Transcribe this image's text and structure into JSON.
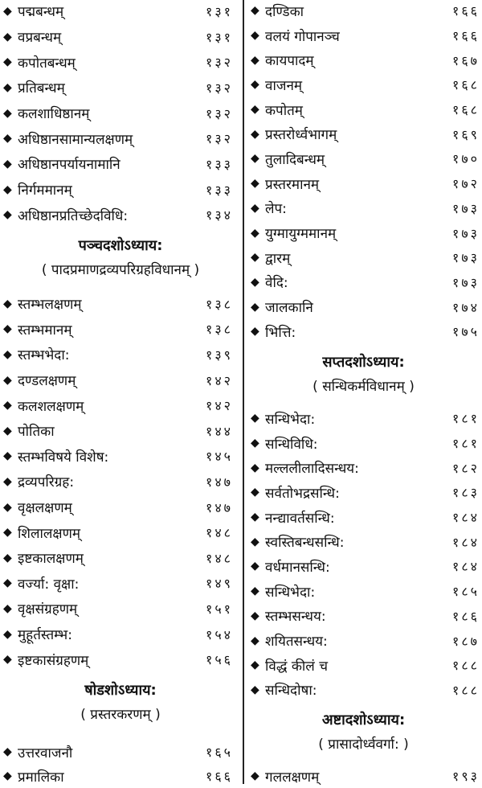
{
  "left": {
    "group1": [
      {
        "title": "पद्मबन्धम्",
        "page": "१३१"
      },
      {
        "title": "वप्रबन्धम्",
        "page": "१३१"
      },
      {
        "title": "कपोतबन्धम्",
        "page": "१३२"
      },
      {
        "title": "प्रतिबन्धम्",
        "page": "१३२"
      },
      {
        "title": "कलशाधिष्ठानम्",
        "page": "१३२"
      },
      {
        "title": "अधिष्ठानसामान्यलक्षणम्",
        "page": "१३२"
      },
      {
        "title": "अधिष्ठानपर्यायनामानि",
        "page": "१३३"
      },
      {
        "title": "निर्गममानम्",
        "page": "१३३"
      },
      {
        "title": "अधिष्ठानप्रतिच्छेदविधि:",
        "page": "१३४"
      }
    ],
    "chapter15": {
      "heading": "पञ्चदशोऽध्याय:",
      "subtitle": "( पादप्रमाणद्रव्यपरिग्रहविधानम् )"
    },
    "group2": [
      {
        "title": "स्तम्भलक्षणम्",
        "page": "१३८"
      },
      {
        "title": "स्तम्भमानम्",
        "page": "१३८"
      },
      {
        "title": "स्तम्भभेदा:",
        "page": "१३९"
      },
      {
        "title": "दण्डलक्षणम्",
        "page": "१४२"
      },
      {
        "title": "कलशलक्षणम्",
        "page": "१४२"
      },
      {
        "title": "पोतिका",
        "page": "१४४"
      },
      {
        "title": "स्तम्भविषये विशेष:",
        "page": "१४५"
      },
      {
        "title": "द्रव्यपरिग्रह:",
        "page": "१४७"
      },
      {
        "title": "वृक्षलक्षणम्",
        "page": "१४७"
      },
      {
        "title": "शिलालक्षणम्",
        "page": "१४८"
      },
      {
        "title": "इष्टकालक्षणम्",
        "page": "१४८"
      },
      {
        "title": "वर्ज्या: वृक्षा:",
        "page": "१४९"
      },
      {
        "title": "वृक्षसंग्रहणम्",
        "page": "१५१"
      },
      {
        "title": "मुहूर्तस्तम्भ:",
        "page": "१५४"
      },
      {
        "title": "इष्टकासंग्रहणम्",
        "page": "१५६"
      }
    ],
    "chapter16": {
      "heading": "षोडशोऽध्याय:",
      "subtitle": "( प्रस्तरकरणम् )"
    },
    "group3": [
      {
        "title": "उत्तरवाजनौ",
        "page": "१६५"
      },
      {
        "title": "प्रमालिका",
        "page": "१६६"
      }
    ]
  },
  "right": {
    "group1": [
      {
        "title": "दण्डिका",
        "page": "१६६"
      },
      {
        "title": "वलयं गोपानञ्च",
        "page": "१६६"
      },
      {
        "title": "कायपादम्",
        "page": "१६७"
      },
      {
        "title": "वाजनम्",
        "page": "१६८"
      },
      {
        "title": "कपोतम्",
        "page": "१६८"
      },
      {
        "title": "प्रस्तरोर्ध्वभागम्",
        "page": "१६९"
      },
      {
        "title": "तुलादिबन्धम्",
        "page": "१७०"
      },
      {
        "title": "प्रस्तरमानम्",
        "page": "१७२"
      },
      {
        "title": "लेप:",
        "page": "१७३"
      },
      {
        "title": "युग्मायुग्ममानम्",
        "page": "१७३"
      },
      {
        "title": "द्वारम्",
        "page": "१७३"
      },
      {
        "title": "वेदि:",
        "page": "१७३"
      },
      {
        "title": "जालकानि",
        "page": "१७४"
      },
      {
        "title": "भित्ति:",
        "page": "१७५"
      }
    ],
    "chapter17": {
      "heading": "सप्तदशोऽध्याय:",
      "subtitle": "( सन्धिकर्मविधानम् )"
    },
    "group2": [
      {
        "title": "सन्धिभेदा:",
        "page": "१८१"
      },
      {
        "title": "सन्धिविधि:",
        "page": "१८१"
      },
      {
        "title": "मल्ललीलादिसन्धय:",
        "page": "१८२"
      },
      {
        "title": "सर्वतोभद्रसन्धि:",
        "page": "१८३"
      },
      {
        "title": "नन्द्यावर्तसन्धि:",
        "page": "१८४"
      },
      {
        "title": "स्वस्तिबन्धसन्धि:",
        "page": "१८४"
      },
      {
        "title": "वर्धमानसन्धि:",
        "page": "१८४"
      },
      {
        "title": "सन्धिभेदा:",
        "page": "१८५"
      },
      {
        "title": "स्तम्भसन्धय:",
        "page": "१८६"
      },
      {
        "title": "शयितसन्धय:",
        "page": "१८७"
      },
      {
        "title": "विद्धं कीलं च",
        "page": "१८८"
      },
      {
        "title": "सन्धिदोषा:",
        "page": "१८८"
      }
    ],
    "chapter18": {
      "heading": "अष्टादशोऽध्याय:",
      "subtitle": "( प्रासादोर्ध्ववर्गा: )"
    },
    "group3": [
      {
        "title": "गललक्षणम्",
        "page": "१९३"
      }
    ]
  },
  "bullet_icon": "black-diamond"
}
